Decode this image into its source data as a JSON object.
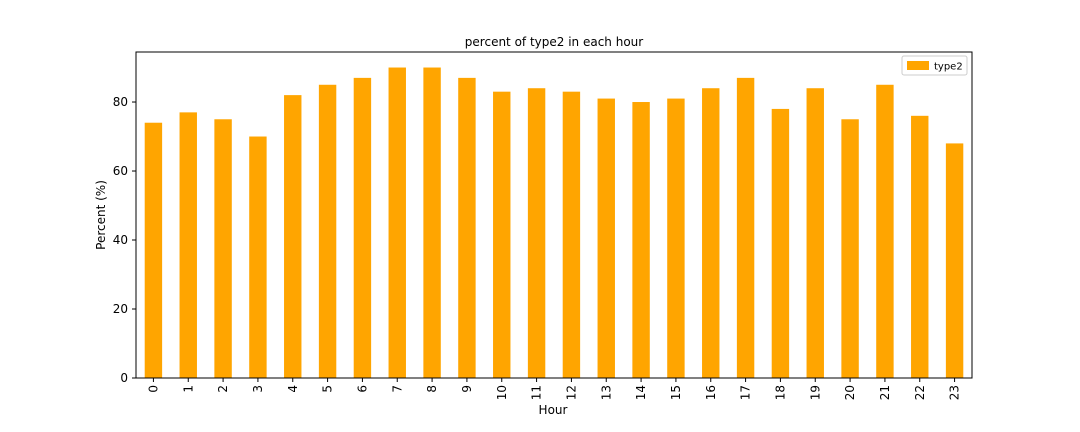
{
  "chart_data": {
    "type": "bar",
    "title": "percent of type2 in each hour",
    "xlabel": "Hour",
    "ylabel": "Percent (%)",
    "categories": [
      "0",
      "1",
      "2",
      "3",
      "4",
      "5",
      "6",
      "7",
      "8",
      "9",
      "10",
      "11",
      "12",
      "13",
      "14",
      "15",
      "16",
      "17",
      "18",
      "19",
      "20",
      "21",
      "22",
      "23"
    ],
    "series": [
      {
        "name": "type2",
        "color": "#ffa500",
        "values": [
          74,
          77,
          75,
          70,
          82,
          85,
          87,
          90,
          90,
          87,
          83,
          84,
          83,
          81,
          80,
          81,
          84,
          87,
          78,
          84,
          75,
          85,
          76,
          68
        ]
      }
    ],
    "ylim": [
      0,
      94.5
    ],
    "yticks": [
      0,
      20,
      40,
      60,
      80
    ],
    "grid": false,
    "legend_position": "top-right"
  }
}
